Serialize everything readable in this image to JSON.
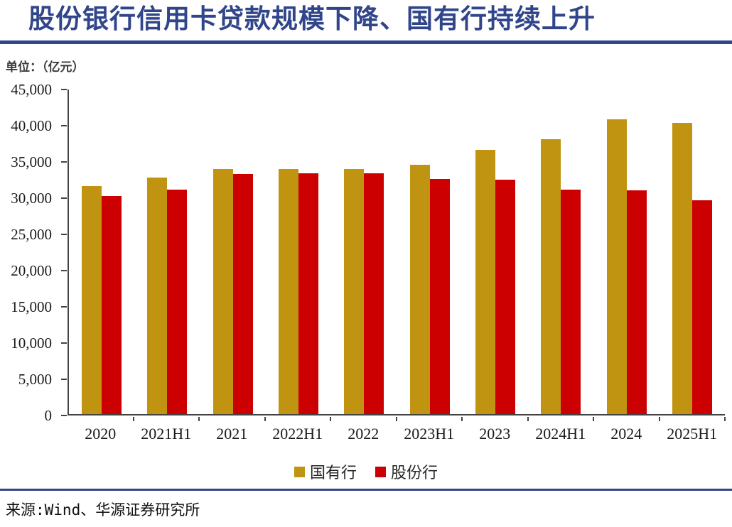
{
  "header": {
    "title": "股份银行信用卡贷款规模下降、国有行持续上升",
    "accent_color": "#31458A"
  },
  "unit_label": "单位：（亿元）",
  "chart_data": {
    "type": "bar",
    "title": "股份银行信用卡贷款规模下降、国有行持续上升",
    "xlabel": "",
    "ylabel": "单位：（亿元）",
    "categories": [
      "2020",
      "2021H1",
      "2021",
      "2022H1",
      "2022",
      "2023H1",
      "2023",
      "2024H1",
      "2024",
      "2025H1"
    ],
    "series": [
      {
        "name": "国有行",
        "color": "#C09410",
        "values": [
          31500,
          32700,
          33800,
          33800,
          33800,
          34400,
          36500,
          37900,
          40700,
          40200
        ]
      },
      {
        "name": "股份行",
        "color": "#CC0000",
        "values": [
          30100,
          31000,
          33100,
          33200,
          33200,
          32500,
          32400,
          31000,
          30900,
          29500
        ]
      }
    ],
    "ylim": [
      0,
      45000
    ],
    "ytick_step": 5000,
    "ytick_labels": [
      "45,000",
      "40,000",
      "35,000",
      "30,000",
      "25,000",
      "20,000",
      "15,000",
      "10,000",
      "5,000",
      "0"
    ],
    "grid": false,
    "legend_position": "bottom"
  },
  "footer": {
    "source": "来源:Wind、华源证券研究所"
  }
}
